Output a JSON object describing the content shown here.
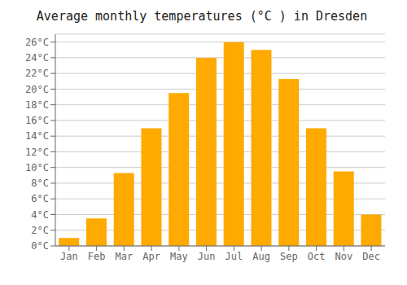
{
  "chart_data": {
    "type": "bar",
    "title": "Average monthly temperatures (°C ) in Dresden",
    "categories": [
      "Jan",
      "Feb",
      "Mar",
      "Apr",
      "May",
      "Jun",
      "Jul",
      "Aug",
      "Sep",
      "Oct",
      "Nov",
      "Dec"
    ],
    "values": [
      1.0,
      3.5,
      9.3,
      15.0,
      19.5,
      24.0,
      26.0,
      25.0,
      21.3,
      15.0,
      9.5,
      4.0
    ],
    "color": "#FFAA00",
    "ylim": [
      0,
      27
    ],
    "yticks": [
      {
        "value": 0,
        "label": "0°C"
      },
      {
        "value": 2,
        "label": "2°C"
      },
      {
        "value": 4,
        "label": "4°C"
      },
      {
        "value": 6,
        "label": "6°C"
      },
      {
        "value": 8,
        "label": "8°C"
      },
      {
        "value": 10,
        "label": "10°C"
      },
      {
        "value": 12,
        "label": "12°C"
      },
      {
        "value": 14,
        "label": "14°C"
      },
      {
        "value": 16,
        "label": "16°C"
      },
      {
        "value": 18,
        "label": "18°C"
      },
      {
        "value": 20,
        "label": "20°C"
      },
      {
        "value": 22,
        "label": "22°C"
      },
      {
        "value": 24,
        "label": "24°C"
      },
      {
        "value": 26,
        "label": "26°C"
      }
    ],
    "grid": true
  }
}
